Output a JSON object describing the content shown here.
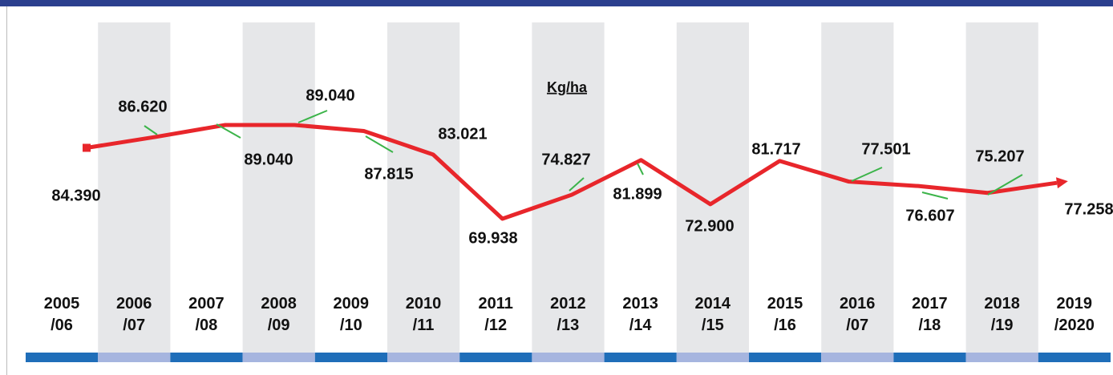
{
  "chart_data": {
    "type": "line",
    "unit_label": "Kg/ha",
    "categories": [
      "2005\n/06",
      "2006\n/07",
      "2007\n/08",
      "2008\n/09",
      "2009\n/10",
      "2010\n/11",
      "2011\n/12",
      "2012\n/13",
      "2013\n/14",
      "2014\n/15",
      "2015\n/16",
      "2016\n/07",
      "2017\n/18",
      "2018\n/19",
      "2019\n/2020"
    ],
    "series": [
      {
        "name": "Kg/ha",
        "color": "#e8262b",
        "values": [
          84.39,
          86.62,
          89.04,
          89.04,
          87.815,
          83.021,
          69.938,
          74.827,
          81.899,
          72.9,
          81.717,
          77.501,
          76.607,
          75.207,
          77.258
        ],
        "value_labels": [
          "84.390",
          "86.620",
          "89.040",
          "89.040",
          "87.815",
          "83.021",
          "69.938",
          "74.827",
          "81.899",
          "72.900",
          "81.717",
          "77.501",
          "76.607",
          "75.207",
          "77.258"
        ]
      }
    ]
  }
}
